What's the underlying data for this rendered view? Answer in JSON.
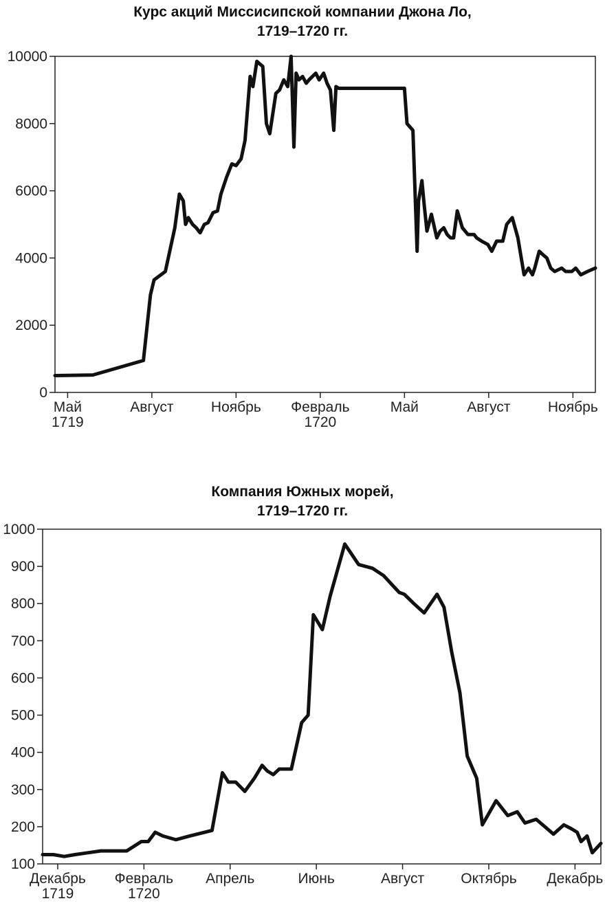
{
  "chart_data": [
    {
      "type": "line",
      "title_line1": "Курс акций Миссисипской компании Джона Ло,",
      "title_line2": "1719–1720 гг.",
      "xlabel": "",
      "ylabel": "",
      "ylim": [
        0,
        10000
      ],
      "yticks": [
        0,
        2000,
        4000,
        6000,
        8000,
        10000
      ],
      "grid": false,
      "x_ticks": [
        {
          "x": 0.0,
          "label": "Май",
          "sub": "1719"
        },
        {
          "x": 3.0,
          "label": "Август",
          "sub": ""
        },
        {
          "x": 6.0,
          "label": "Ноябрь",
          "sub": ""
        },
        {
          "x": 9.0,
          "label": "Февраль",
          "sub": "1720"
        },
        {
          "x": 12.0,
          "label": "Май",
          "sub": ""
        },
        {
          "x": 15.0,
          "label": "Август",
          "sub": ""
        },
        {
          "x": 18.0,
          "label": "Ноябрь",
          "sub": ""
        }
      ],
      "xlim": [
        -0.45,
        18.8
      ],
      "series": [
        {
          "x": [
            -0.45,
            0.9,
            2.7,
            2.95,
            3.08,
            3.48,
            3.82,
            3.98,
            4.12,
            4.2,
            4.3,
            4.45,
            4.58,
            4.72,
            4.87,
            5.0,
            5.18,
            5.34,
            5.46,
            5.66,
            5.85,
            6.0,
            6.18,
            6.32,
            6.5,
            6.6,
            6.74,
            6.95,
            7.08,
            7.2,
            7.42,
            7.55,
            7.7,
            7.84,
            7.96,
            8.06,
            8.14,
            8.24,
            8.37,
            8.5,
            8.6,
            8.72,
            8.84,
            8.96,
            9.12,
            9.24,
            9.36,
            9.48,
            9.56,
            9.66,
            9.72,
            9.8,
            12.0,
            12.09,
            12.3,
            12.45,
            12.5,
            12.62,
            12.7,
            12.8,
            12.96,
            13.15,
            13.27,
            13.4,
            13.52,
            13.64,
            13.75,
            13.88,
            14.06,
            14.26,
            14.48,
            14.57,
            14.75,
            14.97,
            15.11,
            15.28,
            15.5,
            15.64,
            15.84,
            16.04,
            16.26,
            16.42,
            16.56,
            16.64,
            16.8,
            16.93,
            17.07,
            17.21,
            17.35,
            17.6,
            17.74,
            17.96,
            18.1,
            18.28,
            18.52,
            18.8
          ],
          "y": [
            500,
            520,
            950,
            2900,
            3350,
            3600,
            4900,
            5900,
            5700,
            5000,
            5200,
            5000,
            4900,
            4750,
            5000,
            5050,
            5350,
            5400,
            5900,
            6400,
            6800,
            6750,
            6950,
            7500,
            9400,
            9100,
            9850,
            9700,
            8000,
            7700,
            8900,
            9000,
            9300,
            9100,
            10000,
            7300,
            9500,
            9300,
            9400,
            9200,
            9300,
            9400,
            9500,
            9300,
            9500,
            9200,
            9000,
            7800,
            9100,
            9050,
            9050,
            9050,
            9050,
            8000,
            7800,
            4200,
            5700,
            6300,
            5600,
            4800,
            5300,
            4600,
            4800,
            4900,
            4700,
            4600,
            4600,
            5400,
            4900,
            4700,
            4700,
            4600,
            4500,
            4400,
            4200,
            4500,
            4500,
            5000,
            5200,
            4600,
            3500,
            3700,
            3500,
            3700,
            4200,
            4100,
            4000,
            3700,
            3600,
            3700,
            3600,
            3600,
            3700,
            3500,
            3600,
            3700
          ]
        }
      ]
    },
    {
      "type": "line",
      "title_line1": "Компания Южных морей,",
      "title_line2": "1719–1720 гг.",
      "xlabel": "",
      "ylabel": "",
      "ylim": [
        100,
        1000
      ],
      "yticks": [
        100,
        200,
        300,
        400,
        500,
        600,
        700,
        800,
        900,
        1000
      ],
      "grid": false,
      "x_ticks": [
        {
          "x": 0.0,
          "label": "Декабрь",
          "sub": "1719"
        },
        {
          "x": 2.0,
          "label": "Февраль",
          "sub": "1720"
        },
        {
          "x": 4.0,
          "label": "Апрель",
          "sub": ""
        },
        {
          "x": 6.0,
          "label": "Июнь",
          "sub": ""
        },
        {
          "x": 8.0,
          "label": "Август",
          "sub": ""
        },
        {
          "x": 10.0,
          "label": "Октябрь",
          "sub": ""
        },
        {
          "x": 12.0,
          "label": "Декабрь",
          "sub": ""
        }
      ],
      "xlim": [
        -0.35,
        12.6
      ],
      "series": [
        {
          "x": [
            -0.35,
            -0.1,
            0.15,
            0.4,
            0.7,
            1.0,
            1.3,
            1.6,
            1.94,
            2.1,
            2.26,
            2.44,
            2.74,
            3.06,
            3.58,
            3.82,
            3.96,
            4.13,
            4.34,
            4.56,
            4.74,
            4.86,
            5.0,
            5.14,
            5.42,
            5.66,
            5.81,
            5.93,
            6.14,
            6.32,
            6.66,
            6.98,
            7.3,
            7.56,
            7.92,
            8.04,
            8.26,
            8.5,
            8.8,
            8.96,
            9.14,
            9.33,
            9.5,
            9.72,
            9.85,
            10.17,
            10.44,
            10.66,
            10.84,
            11.1,
            11.3,
            11.5,
            11.74,
            11.91,
            12.05,
            12.14,
            12.28,
            12.4,
            12.6
          ],
          "y": [
            125,
            125,
            120,
            125,
            130,
            135,
            135,
            135,
            160,
            160,
            185,
            175,
            165,
            175,
            190,
            345,
            320,
            320,
            295,
            330,
            365,
            350,
            340,
            355,
            355,
            480,
            500,
            770,
            730,
            820,
            960,
            905,
            895,
            875,
            830,
            825,
            800,
            775,
            825,
            790,
            670,
            560,
            390,
            330,
            205,
            270,
            230,
            240,
            210,
            220,
            200,
            180,
            205,
            195,
            185,
            160,
            175,
            130,
            155
          ]
        }
      ]
    }
  ]
}
